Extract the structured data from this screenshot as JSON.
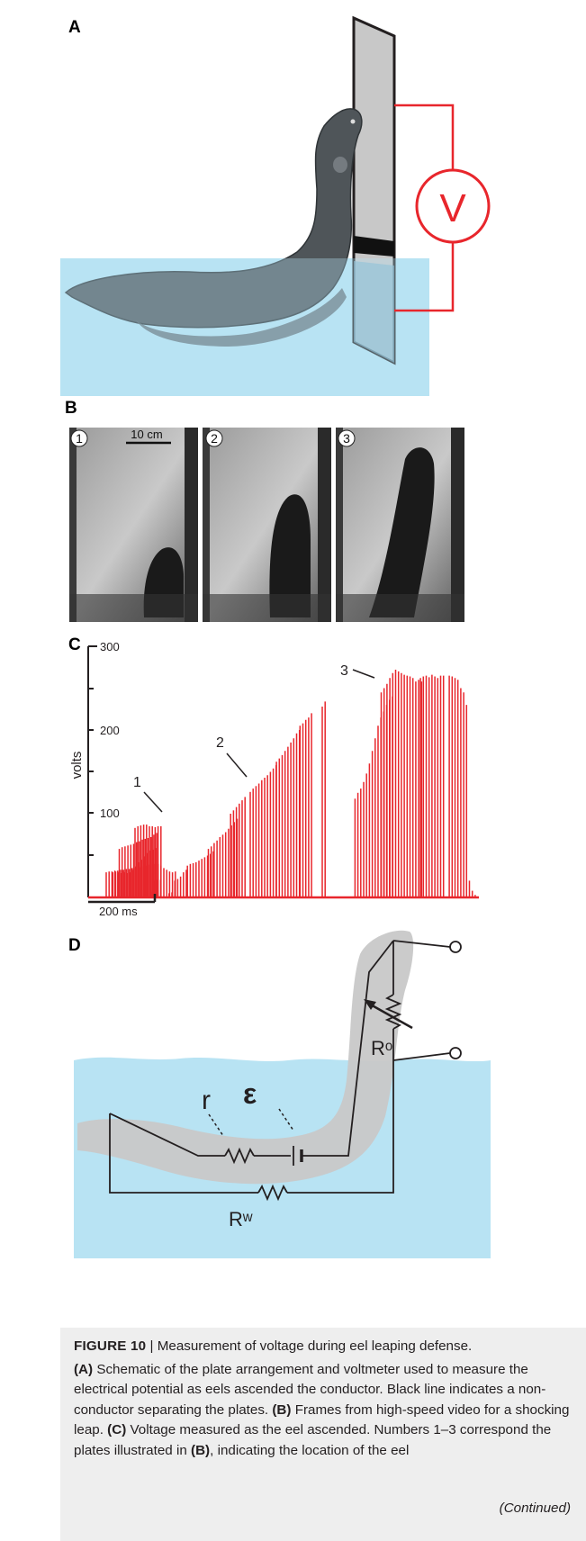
{
  "panels": {
    "a": {
      "label": "A",
      "meter_symbol": "V"
    },
    "b": {
      "label": "B",
      "frames": [
        {
          "number": "1"
        },
        {
          "number": "2"
        },
        {
          "number": "3"
        }
      ],
      "scale_bar_label": "10 cm"
    },
    "c": {
      "label": "C"
    },
    "d": {
      "label": "D",
      "labels": {
        "r": "r",
        "emf": "ε",
        "r_organ": "Rᵒ",
        "r_water": "Rʷ"
      }
    }
  },
  "chart_data": {
    "type": "bar",
    "title": "",
    "xlabel": "",
    "ylabel": "volts",
    "ylim": [
      0,
      300
    ],
    "y_ticks": [
      "100",
      "200",
      "300"
    ],
    "time_scale_label": "200 ms",
    "series_color": "#e8262c",
    "annotations": [
      "1",
      "2",
      "3"
    ],
    "bursts": [
      {
        "start": 0.0,
        "values": [
          30,
          31,
          31,
          32,
          32,
          33,
          33,
          34,
          34,
          35,
          35,
          36,
          36,
          37,
          38,
          39,
          40,
          40,
          40,
          38,
          35,
          33,
          31,
          30,
          31
        ]
      },
      {
        "start": 0.05,
        "values": [
          30,
          31,
          30,
          29,
          30,
          29,
          30,
          33,
          37,
          42,
          45,
          49,
          53,
          56,
          57,
          59
        ]
      },
      {
        "start": 0.1,
        "values": [
          58,
          60,
          61,
          62,
          63,
          64,
          66,
          67,
          69,
          70,
          71,
          72,
          75,
          77
        ]
      },
      {
        "start": 0.22,
        "values": [
          83,
          85,
          86,
          87,
          87,
          85,
          85,
          84,
          85,
          85
        ]
      },
      {
        "start": 0.35,
        "values": [
          7,
          20,
          21,
          21
        ]
      },
      {
        "start": 0.48,
        "values": [
          5,
          6,
          20,
          22,
          25,
          30,
          33
        ]
      },
      {
        "start": 0.62,
        "values": [
          38,
          40,
          41,
          42,
          44,
          46,
          48,
          50,
          52,
          55
        ]
      },
      {
        "start": 0.78,
        "values": [
          58,
          61,
          65,
          68,
          72,
          75,
          78,
          82,
          86,
          90,
          94
        ]
      },
      {
        "start": 0.95,
        "values": [
          100,
          104,
          108,
          112,
          116,
          120
        ]
      },
      {
        "start": 1.1,
        "values": [
          126,
          130,
          133,
          136,
          140,
          143,
          146,
          150,
          154,
          158
        ]
      },
      {
        "start": 1.3,
        "values": [
          162,
          166,
          170,
          175,
          180,
          185,
          190,
          196,
          200
        ]
      },
      {
        "start": 1.48,
        "values": [
          205,
          208,
          212,
          215,
          220
        ]
      },
      {
        "start": 1.65,
        "values": [
          228,
          234
        ]
      },
      {
        "start": 1.9,
        "values": [
          118,
          125,
          130,
          138,
          148,
          160,
          175,
          190,
          205,
          215,
          222,
          230,
          236,
          240
        ]
      },
      {
        "start": 2.1,
        "values": [
          245,
          250,
          255,
          262,
          268,
          272,
          270,
          268,
          266,
          265,
          264,
          262,
          258,
          260,
          258
        ]
      },
      {
        "start": 2.4,
        "values": [
          262,
          264,
          265,
          263,
          266,
          264,
          262,
          265,
          265
        ]
      },
      {
        "start": 2.62,
        "values": [
          265,
          264,
          262,
          260,
          250,
          245,
          230,
          20,
          8,
          3
        ]
      }
    ]
  },
  "caption": {
    "figure_label": "FIGURE 10",
    "separator": "|",
    "title": "Measurement of voltage during eel leaping defense.",
    "a_ref": "(A)",
    "a_text": "Schematic of the plate arrangement and voltmeter used to measure the electrical potential as eels ascended the conductor. Black line indicates a non-conductor separating the plates.",
    "b_ref": "(B)",
    "b_text": "Frames from high-speed video for a shocking leap.",
    "c_ref": "(C)",
    "c_text": "Voltage measured as the eel ascended. Numbers 1–3 correspond the plates illustrated in",
    "c_ref2": "(B)",
    "c_text2": ", indicating the location of the eel",
    "continued": "(Continued)"
  }
}
